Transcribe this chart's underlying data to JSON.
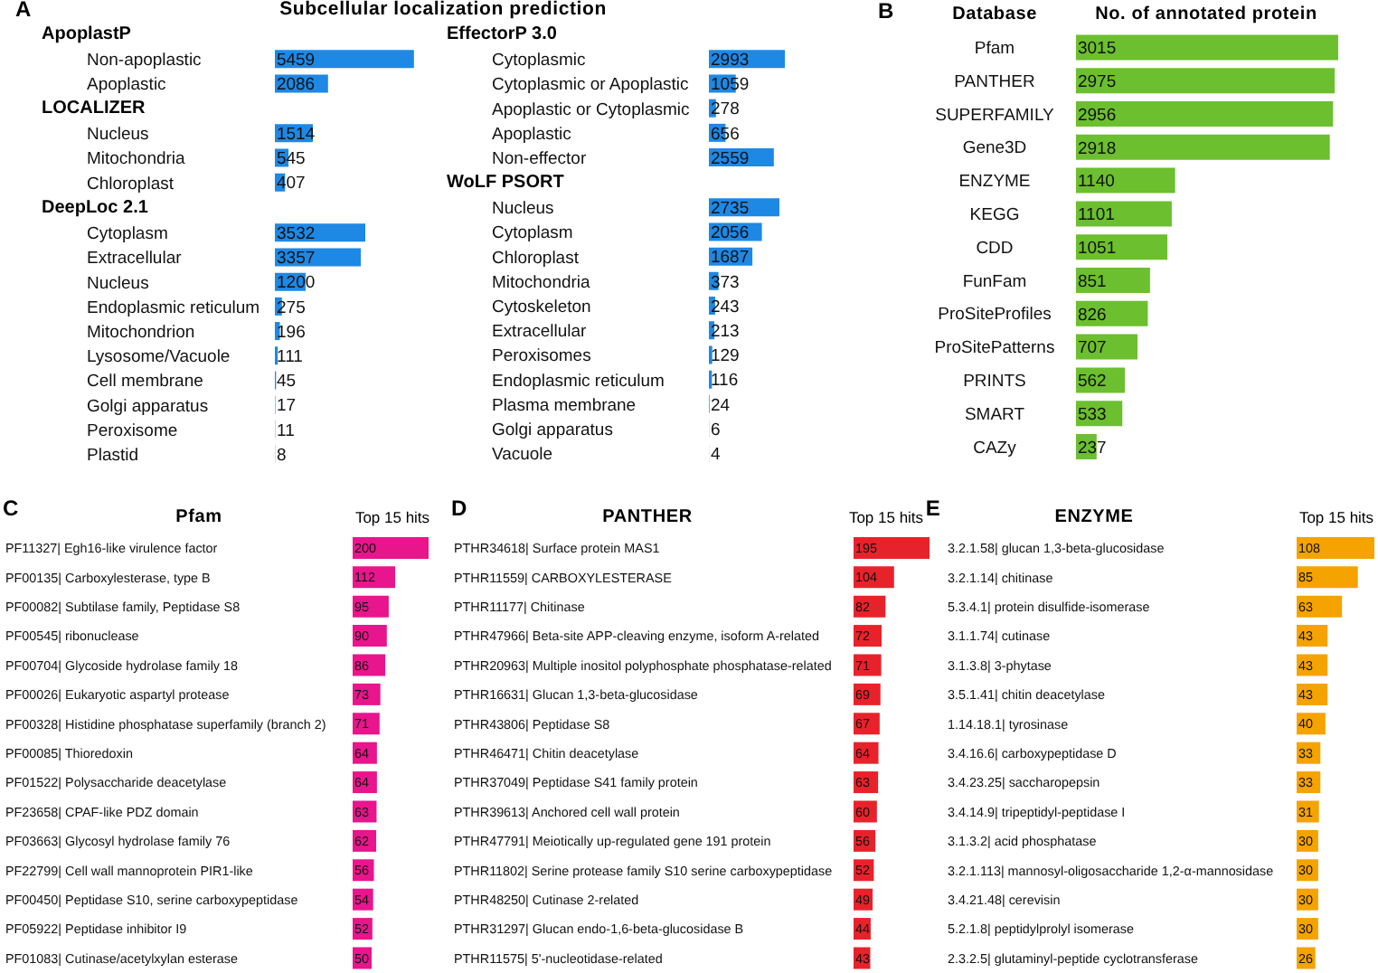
{
  "chart_data": [
    {
      "type": "bar",
      "orientation": "horizontal",
      "ylabel": "ApoplastP",
      "annotations": [
        "A",
        "Subcellular localization prediction"
      ],
      "categories": [
        "Non-apoplastic",
        "Apoplastic"
      ],
      "values": [
        5459,
        2086
      ],
      "color": "#1e88e5",
      "tick_labels": false,
      "data_labels": true
    },
    {
      "type": "bar",
      "orientation": "horizontal",
      "ylabel": "LOCALIZER",
      "categories": [
        "Nucleus",
        "Mitochondria",
        "Chloroplast"
      ],
      "values": [
        1514,
        545,
        407
      ],
      "color": "#1e88e5",
      "tick_labels": false,
      "data_labels": true
    },
    {
      "type": "bar",
      "orientation": "horizontal",
      "ylabel": "DeepLoc 2.1",
      "categories": [
        "Cytoplasm",
        "Extracellular",
        "Nucleus",
        "Endoplasmic reticulum",
        "Mitochondrion",
        "Lysosome/Vacuole",
        "Cell membrane",
        "Golgi apparatus",
        "Peroxisome",
        "Plastid"
      ],
      "values": [
        3532,
        3357,
        1200,
        275,
        196,
        111,
        45,
        17,
        11,
        8
      ],
      "color": "#1e88e5",
      "tick_labels": false,
      "data_labels": true
    },
    {
      "type": "bar",
      "orientation": "horizontal",
      "ylabel": "EffectorP 3.0",
      "categories": [
        "Cytoplasmic",
        "Cytoplasmic or Apoplastic",
        "Apoplastic or Cytoplasmic",
        "Apoplastic",
        "Non-effector"
      ],
      "values": [
        2993,
        1059,
        278,
        656,
        2559
      ],
      "color": "#1e88e5",
      "tick_labels": false,
      "data_labels": true
    },
    {
      "type": "bar",
      "orientation": "horizontal",
      "ylabel": "WoLF PSORT",
      "categories": [
        "Nucleus",
        "Cytoplasm",
        "Chloroplast",
        "Mitochondria",
        "Cytoskeleton",
        "Extracellular",
        "Peroxisomes",
        "Endoplasmic reticulum",
        "Plasma membrane",
        "Golgi apparatus",
        "Vacuole"
      ],
      "values": [
        2735,
        2056,
        1687,
        373,
        243,
        213,
        129,
        116,
        24,
        6,
        4
      ],
      "color": "#1e88e5",
      "tick_labels": false,
      "data_labels": true
    },
    {
      "type": "bar",
      "orientation": "horizontal",
      "ylabel": "Database",
      "xlabel": "No. of annotated protein",
      "annotations": [
        "B"
      ],
      "categories": [
        "Pfam",
        "PANTHER",
        "SUPERFAMILY",
        "Gene3D",
        "ENZYME",
        "KEGG",
        "CDD",
        "FunFam",
        "ProSiteProfiles",
        "ProSitePatterns",
        "PRINTS",
        "SMART",
        "CAZy"
      ],
      "values": [
        3015,
        2975,
        2956,
        2918,
        1140,
        1101,
        1051,
        851,
        826,
        707,
        562,
        533,
        237
      ],
      "color": "#6cbf2e",
      "tick_labels": false,
      "data_labels": true
    },
    {
      "type": "bar",
      "orientation": "horizontal",
      "ylabel": "Pfam",
      "xlabel": "Top 15 hits",
      "annotations": [
        "C"
      ],
      "categories": [
        "PF11327| Egh16-like virulence factor",
        "PF00135| Carboxylesterase, type B",
        "PF00082| Subtilase family, Peptidase S8",
        "PF00545| ribonuclease",
        "PF00704| Glycoside hydrolase family 18",
        "PF00026| Eukaryotic aspartyl protease",
        "PF00328| Histidine phosphatase superfamily (branch 2)",
        "PF00085| Thioredoxin",
        "PF01522| Polysaccharide deacetylase",
        "PF23658| CPAF-like PDZ domain",
        "PF03663| Glycosyl hydrolase family 76",
        "PF22799| Cell wall mannoprotein PIR1-like",
        "PF00450| Peptidase S10, serine carboxypeptidase",
        "PF05922| Peptidase inhibitor I9",
        "PF01083| Cutinase/acetylxylan esterase"
      ],
      "values": [
        200,
        112,
        95,
        90,
        86,
        73,
        71,
        64,
        64,
        63,
        62,
        56,
        54,
        52,
        50
      ],
      "color": "#e8158c",
      "tick_labels": false,
      "data_labels": true
    },
    {
      "type": "bar",
      "orientation": "horizontal",
      "ylabel": "PANTHER",
      "xlabel": "Top 15 hits",
      "annotations": [
        "D"
      ],
      "categories": [
        "PTHR34618| Surface protein MAS1",
        "PTHR11559| CARBOXYLESTERASE",
        "PTHR11177| Chitinase",
        "PTHR47966| Beta-site APP-cleaving enzyme, isoform A-related",
        "PTHR20963| Multiple inositol polyphosphate phosphatase-related",
        "PTHR16631| Glucan 1,3-beta-glucosidase",
        "PTHR43806| Peptidase S8",
        "PTHR46471| Chitin deacetylase",
        "PTHR37049| Peptidase S41 family protein",
        "PTHR39613| Anchored cell wall protein",
        "PTHR47791| Meiotically up-regulated gene 191 protein",
        "PTHR11802| Serine protease family S10 serine carboxypeptidase",
        "PTHR48250| Cutinase 2-related",
        "PTHR31297| Glucan endo-1,6-beta-glucosidase B",
        "PTHR11575| 5'-nucleotidase-related"
      ],
      "values": [
        195,
        104,
        82,
        72,
        71,
        69,
        67,
        64,
        63,
        60,
        56,
        52,
        49,
        44,
        43
      ],
      "color": "#e8222b",
      "tick_labels": false,
      "data_labels": true
    },
    {
      "type": "bar",
      "orientation": "horizontal",
      "ylabel": "ENZYME",
      "xlabel": "Top 15 hits",
      "annotations": [
        "E"
      ],
      "categories": [
        "3.2.1.58| glucan 1,3-beta-glucosidase",
        "3.2.1.14| chitinase",
        "5.3.4.1| protein disulfide-isomerase",
        "3.1.1.74| cutinase",
        "3.1.3.8| 3-phytase",
        "3.5.1.41| chitin deacetylase",
        "1.14.18.1| tyrosinase",
        "3.4.16.6| carboxypeptidase D",
        "3.4.23.25| saccharopepsin",
        "3.4.14.9| tripeptidyl-peptidase I",
        "3.1.3.2| acid phosphatase",
        "3.2.1.113| mannosyl-oligosaccharide 1,2-α-mannosidase",
        "3.4.21.48| cerevisin",
        "5.2.1.8| peptidylprolyl isomerase",
        "2.3.2.5| glutaminyl-peptide cyclotransferase"
      ],
      "values": [
        108,
        85,
        63,
        43,
        43,
        43,
        40,
        33,
        33,
        31,
        30,
        30,
        30,
        30,
        26
      ],
      "color": "#f5a300",
      "tick_labels": false,
      "data_labels": true
    }
  ]
}
